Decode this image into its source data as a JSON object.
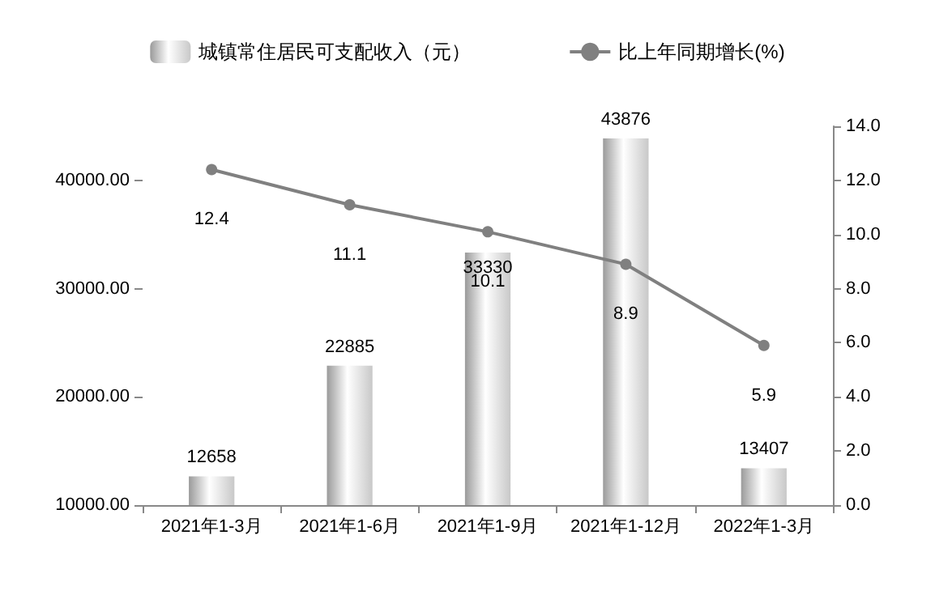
{
  "chart_data": {
    "type": "bar",
    "categories": [
      "2021年1-3月",
      "2021年1-6月",
      "2021年1-9月",
      "2021年1-12月",
      "2022年1-3月"
    ],
    "series": [
      {
        "name": "城镇常住居民可支配收入（元）",
        "color": "#c8c8c8",
        "values": [
          12658,
          22885,
          33330,
          43876,
          13407
        ]
      },
      {
        "name": "比上年同期增长(%)",
        "type": "line",
        "axis": "y2",
        "color": "#808080",
        "marker": "circle",
        "values": [
          12.4,
          11.1,
          10.1,
          8.9,
          5.9
        ]
      }
    ],
    "ylim": [
      10000,
      45000
    ],
    "yticks": [
      {
        "value": 10000,
        "label": "10000.00"
      },
      {
        "value": 20000,
        "label": "20000.00"
      },
      {
        "value": 30000,
        "label": "30000.00"
      },
      {
        "value": 40000,
        "label": "40000.00"
      }
    ],
    "y2lim": [
      0,
      14
    ],
    "y2ticks": [
      {
        "value": 0,
        "label": "0.0"
      },
      {
        "value": 2,
        "label": "2.0"
      },
      {
        "value": 4,
        "label": "4.0"
      },
      {
        "value": 6,
        "label": "6.0"
      },
      {
        "value": 8,
        "label": "8.0"
      },
      {
        "value": 10,
        "label": "10.0"
      },
      {
        "value": 12,
        "label": "12.0"
      },
      {
        "value": 14,
        "label": "14.0"
      }
    ],
    "data_labels": true,
    "grid": false,
    "legend": "top"
  }
}
